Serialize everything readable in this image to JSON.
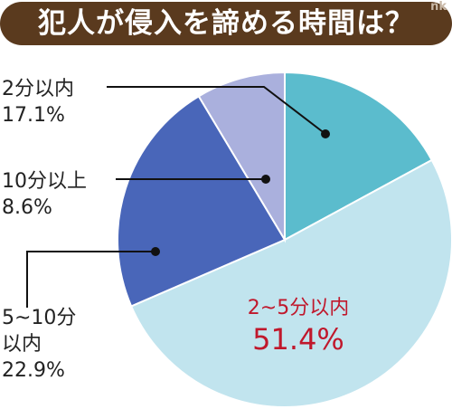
{
  "title": "犯人が侵入を諦める時間は？",
  "watermark": "nk",
  "chart_data": {
    "type": "pie",
    "title": "犯人が侵入を諦める時間は？",
    "start": "12 o'clock, clockwise",
    "slices": [
      {
        "label": "2分以内",
        "value": 17.1,
        "value_label": "17.1%",
        "color": "#5bbccd"
      },
      {
        "label": "2~5分以内",
        "value": 51.4,
        "value_label": "51.4%",
        "color": "#c1e4ee"
      },
      {
        "label": "5~10分以内",
        "value": 22.9,
        "value_label": "22.9%",
        "color": "#4966b9"
      },
      {
        "label": "10分以上",
        "value": 8.6,
        "value_label": "8.6%",
        "color": "#aab0dd"
      }
    ]
  }
}
